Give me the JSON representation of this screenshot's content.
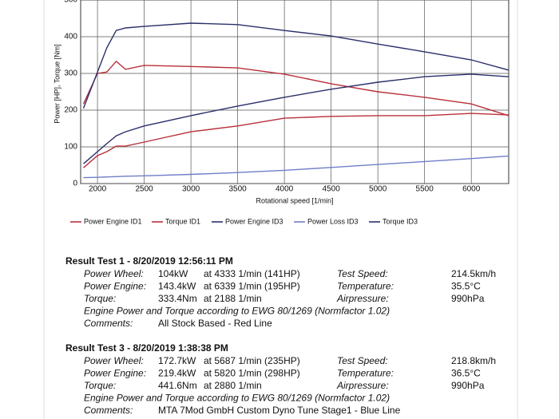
{
  "chart_data": {
    "type": "line",
    "ylabel": "Power [HP], Torque [Nm]",
    "xlabel": "Rotational speed [1/min]",
    "x": [
      1850,
      2000,
      2100,
      2200,
      2300,
      2500,
      3000,
      3500,
      4000,
      4500,
      5000,
      5500,
      6000,
      6400
    ],
    "xlim": [
      1820,
      6400
    ],
    "xticks": [
      2000,
      2500,
      3000,
      3500,
      4000,
      4500,
      5000,
      5500,
      6000
    ],
    "ylim": [
      0,
      500
    ],
    "yticks": [
      0,
      100,
      200,
      300,
      400,
      500
    ],
    "grid": true,
    "legend": "bottom",
    "series": [
      {
        "name": "Power Engine ID1",
        "color": "#b8303a",
        "values": [
          43,
          76,
          87,
          102,
          102,
          113,
          141,
          157,
          178,
          183,
          185,
          185,
          191,
          187
        ]
      },
      {
        "name": "Torque ID1",
        "color": "#b8303a",
        "values": [
          217,
          300,
          304,
          333,
          311,
          322,
          319,
          315,
          298,
          272,
          250,
          235,
          217,
          185
        ]
      },
      {
        "name": "Power Engine ID3",
        "color": "#2a2f6a",
        "values": [
          54,
          87,
          109,
          130,
          141,
          157,
          185,
          211,
          235,
          257,
          276,
          291,
          298,
          291
        ]
      },
      {
        "name": "Power Loss ID3",
        "color": "#6f7fc8",
        "values": [
          16,
          17,
          18,
          19,
          20,
          21,
          25,
          30,
          36,
          44,
          52,
          60,
          68,
          75
        ]
      },
      {
        "name": "Torque ID3",
        "color": "#2a2f6a",
        "values": [
          205,
          304,
          370,
          417,
          424,
          428,
          437,
          433,
          417,
          402,
          380,
          359,
          337,
          309
        ]
      }
    ]
  },
  "results": [
    {
      "title": "Result Test 1 - 8/20/2019 12:56:11 PM",
      "rows": [
        [
          "Power Wheel:",
          "104kW",
          "at 4333 1/min (141HP)",
          "Test Speed:",
          "214.5km/h"
        ],
        [
          "Power Engine:",
          "143.4kW",
          "at 6339 1/min (195HP)",
          "Temperature:",
          "35.5°C"
        ],
        [
          "Torque:",
          "333.4Nm",
          "at 2188 1/min",
          "Airpressure:",
          "990hPa"
        ]
      ],
      "note": "Engine Power and Torque according to EWG 80/1269 (Normfactor 1.02)",
      "comments_label": "Comments:",
      "comments": "All Stock Based - Red Line"
    },
    {
      "title": "Result Test 3 - 8/20/2019 1:38:38 PM",
      "rows": [
        [
          "Power Wheel:",
          "172.7kW",
          "at 5687 1/min (235HP)",
          "Test Speed:",
          "218.8km/h"
        ],
        [
          "Power Engine:",
          "219.4kW",
          "at 5820 1/min (298HP)",
          "Temperature:",
          "36.5°C"
        ],
        [
          "Torque:",
          "441.6Nm",
          "at 2880 1/min",
          "Airpressure:",
          "990hPa"
        ]
      ],
      "note": "Engine Power and Torque according to EWG 80/1269 (Normfactor 1.02)",
      "comments_label": "Comments:",
      "comments": "MTA 7Mod GmbH Custom Dyno Tune Stage1 - Blue Line"
    }
  ]
}
